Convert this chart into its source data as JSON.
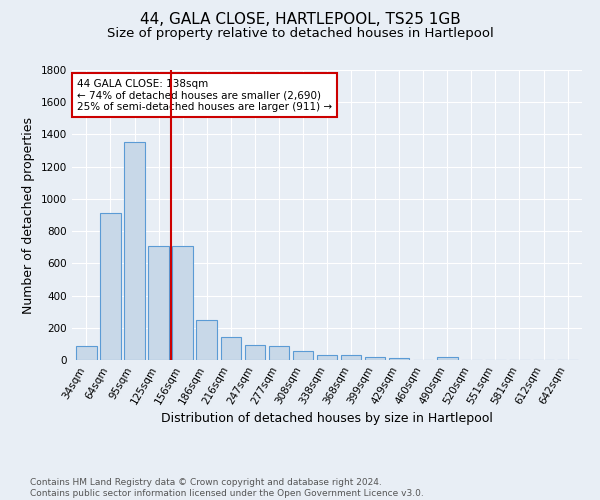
{
  "title": "44, GALA CLOSE, HARTLEPOOL, TS25 1GB",
  "subtitle": "Size of property relative to detached houses in Hartlepool",
  "xlabel": "Distribution of detached houses by size in Hartlepool",
  "ylabel": "Number of detached properties",
  "categories": [
    "34sqm",
    "64sqm",
    "95sqm",
    "125sqm",
    "156sqm",
    "186sqm",
    "216sqm",
    "247sqm",
    "277sqm",
    "308sqm",
    "338sqm",
    "368sqm",
    "399sqm",
    "429sqm",
    "460sqm",
    "490sqm",
    "520sqm",
    "551sqm",
    "581sqm",
    "612sqm",
    "642sqm"
  ],
  "values": [
    90,
    910,
    1355,
    710,
    710,
    250,
    145,
    95,
    90,
    55,
    30,
    28,
    18,
    14,
    0,
    18,
    0,
    0,
    0,
    0,
    0
  ],
  "bar_color": "#c8d8e8",
  "bar_edge_color": "#5b9bd5",
  "background_color": "#e8eef5",
  "grid_color": "#ffffff",
  "vline_color": "#cc0000",
  "annotation_text": "44 GALA CLOSE: 138sqm\n← 74% of detached houses are smaller (2,690)\n25% of semi-detached houses are larger (911) →",
  "annotation_box_color": "#ffffff",
  "annotation_box_edge": "#cc0000",
  "ylim": [
    0,
    1800
  ],
  "yticks": [
    0,
    200,
    400,
    600,
    800,
    1000,
    1200,
    1400,
    1600,
    1800
  ],
  "footnote": "Contains HM Land Registry data © Crown copyright and database right 2024.\nContains public sector information licensed under the Open Government Licence v3.0.",
  "title_fontsize": 11,
  "subtitle_fontsize": 9.5,
  "label_fontsize": 9,
  "tick_fontsize": 7.5,
  "footnote_fontsize": 6.5
}
